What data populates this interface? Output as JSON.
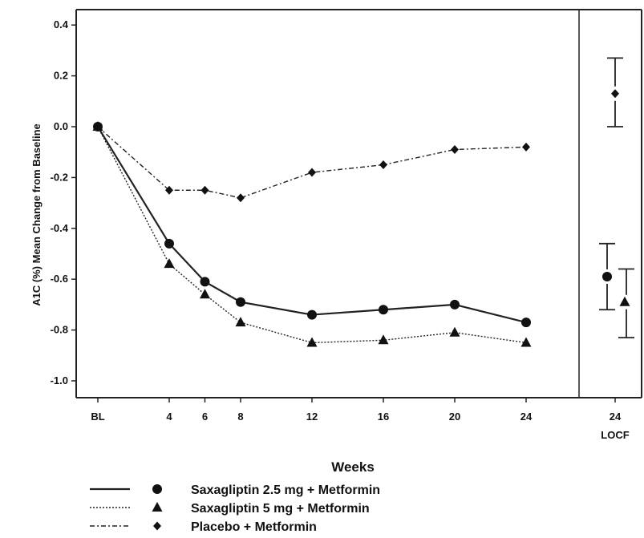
{
  "chart_data": {
    "type": "line",
    "ylabel": "A1C (%) Mean Change from Baseline",
    "xlabel": "Weeks",
    "x_ticks": [
      "BL",
      "4",
      "6",
      "8",
      "12",
      "16",
      "20",
      "24"
    ],
    "x_weeks": [
      0,
      4,
      6,
      8,
      12,
      16,
      20,
      24
    ],
    "locf_tick": [
      "24",
      "LOCF"
    ],
    "ylim": [
      -1.05,
      0.45
    ],
    "y_ticks": [
      0.4,
      0.2,
      0.0,
      -0.2,
      -0.4,
      -0.6,
      -0.8,
      -1.0
    ],
    "y_tick_labels": [
      "0.4",
      "0.2",
      "0.0",
      "-0.2",
      "-0.4",
      "-0.6",
      "-0.8",
      "-1.0"
    ],
    "series": [
      {
        "name": "Saxagliptin 2.5 mg + Metformin",
        "marker": "circle",
        "line_style": "solid",
        "values": [
          0.0,
          -0.46,
          -0.61,
          -0.69,
          -0.74,
          -0.72,
          -0.7,
          -0.77
        ],
        "locf": {
          "mean": -0.59,
          "lower": -0.72,
          "upper": -0.46
        }
      },
      {
        "name": "Saxagliptin 5 mg + Metformin",
        "marker": "triangle",
        "line_style": "dotted",
        "values": [
          0.0,
          -0.54,
          -0.66,
          -0.77,
          -0.85,
          -0.84,
          -0.81,
          -0.85
        ],
        "locf": {
          "mean": -0.69,
          "lower": -0.83,
          "upper": -0.56
        }
      },
      {
        "name": "Placebo + Metformin",
        "marker": "diamond",
        "line_style": "dash-dot",
        "values": [
          0.0,
          -0.25,
          -0.25,
          -0.28,
          -0.18,
          -0.15,
          -0.09,
          -0.08
        ],
        "locf": {
          "mean": 0.13,
          "lower": 0.0,
          "upper": 0.27
        }
      }
    ],
    "grid": false,
    "legend_position": "bottom-left"
  }
}
